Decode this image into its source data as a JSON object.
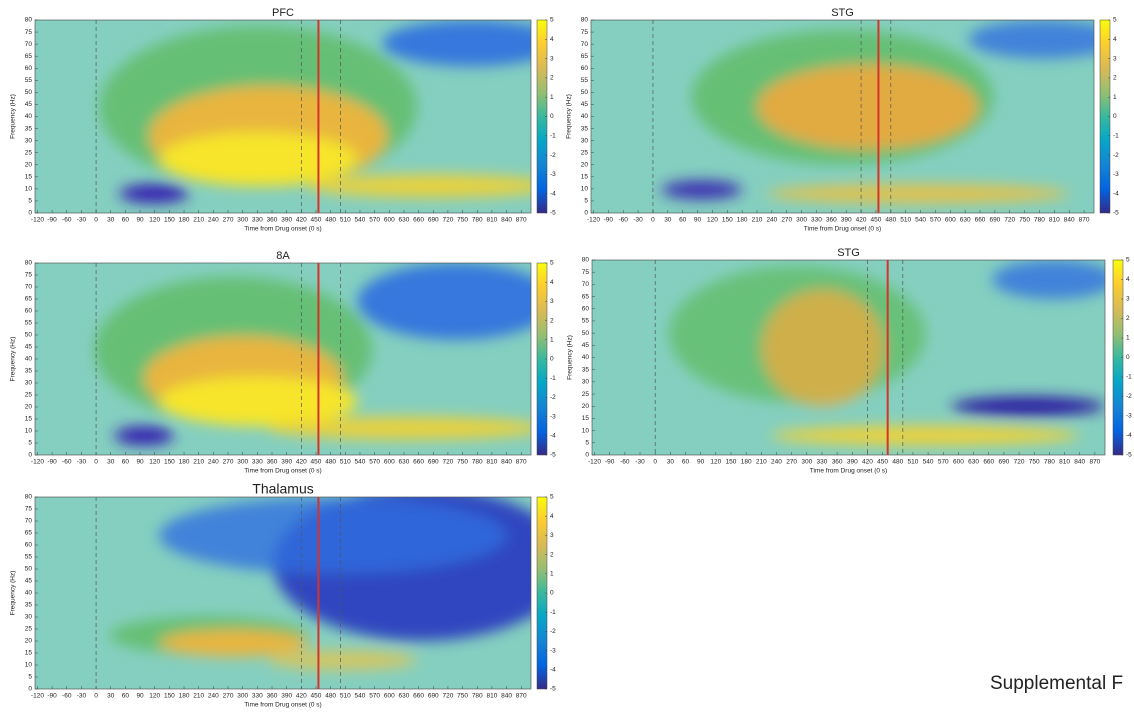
{
  "chart_data": [
    {
      "type": "heatmap",
      "title": "PFC",
      "xlabel": "Time from Drug onset (0 s)",
      "ylabel": "Frequency (Hz)",
      "xlim": [
        -125,
        890
      ],
      "ylim": [
        0,
        80
      ],
      "xticks": [
        -120,
        -90,
        -60,
        -30,
        0,
        30,
        60,
        90,
        120,
        150,
        180,
        210,
        240,
        270,
        300,
        330,
        360,
        390,
        420,
        450,
        480,
        510,
        540,
        570,
        600,
        630,
        660,
        690,
        720,
        750,
        780,
        810,
        840,
        870
      ],
      "yticks": [
        0,
        5,
        10,
        15,
        20,
        25,
        30,
        35,
        40,
        45,
        50,
        55,
        60,
        65,
        70,
        75,
        80
      ],
      "clim": [
        -5,
        5
      ],
      "cticks": [
        -5,
        -4,
        -3,
        -2,
        -1,
        0,
        1,
        2,
        3,
        4,
        5
      ],
      "dashed_lines": [
        0,
        420,
        500
      ],
      "red_line": 455
    },
    {
      "type": "heatmap",
      "title": "STG",
      "xlabel": "Time from Drug onset (0 s)",
      "ylabel": "Frequency (Hz)",
      "xlim": [
        -125,
        890
      ],
      "ylim": [
        0,
        80
      ],
      "xticks": [
        -120,
        -90,
        -60,
        -30,
        0,
        30,
        60,
        90,
        120,
        150,
        180,
        210,
        240,
        270,
        300,
        330,
        360,
        390,
        420,
        450,
        480,
        510,
        540,
        570,
        600,
        630,
        660,
        690,
        720,
        750,
        780,
        810,
        840,
        870
      ],
      "yticks": [
        0,
        5,
        10,
        15,
        20,
        25,
        30,
        35,
        40,
        45,
        50,
        55,
        60,
        65,
        70,
        75,
        80
      ],
      "clim": [
        -5,
        5
      ],
      "cticks": [
        -5,
        -4,
        -3,
        -2,
        -1,
        0,
        1,
        2,
        3,
        4,
        5
      ],
      "dashed_lines": [
        0,
        420,
        480
      ],
      "red_line": 455
    },
    {
      "type": "heatmap",
      "title": "8A",
      "xlabel": "Time from Drug onset (0 s)",
      "ylabel": "Frequency (Hz)",
      "xlim": [
        -125,
        890
      ],
      "ylim": [
        0,
        80
      ],
      "xticks": [
        -120,
        -90,
        -60,
        -30,
        0,
        30,
        60,
        90,
        120,
        150,
        180,
        210,
        240,
        270,
        300,
        330,
        360,
        390,
        420,
        450,
        480,
        510,
        540,
        570,
        600,
        630,
        660,
        690,
        720,
        750,
        780,
        810,
        840,
        870
      ],
      "yticks": [
        0,
        5,
        10,
        15,
        20,
        25,
        30,
        35,
        40,
        45,
        50,
        55,
        60,
        65,
        70,
        75,
        80
      ],
      "clim": [
        -5,
        5
      ],
      "cticks": [
        -5,
        -4,
        -3,
        -2,
        -1,
        0,
        1,
        2,
        3,
        4,
        5
      ],
      "dashed_lines": [
        0,
        420,
        500
      ],
      "red_line": 455
    },
    {
      "type": "heatmap",
      "title": "STG",
      "xlabel": "Time from Drug onset (0 s)",
      "ylabel": "Frequency (Hz)",
      "xlim": [
        -125,
        890
      ],
      "ylim": [
        0,
        80
      ],
      "xticks": [
        -120,
        -90,
        -60,
        -30,
        0,
        30,
        60,
        90,
        120,
        150,
        180,
        210,
        240,
        270,
        300,
        330,
        360,
        390,
        420,
        450,
        480,
        510,
        540,
        570,
        600,
        630,
        660,
        690,
        720,
        750,
        780,
        810,
        840,
        870
      ],
      "yticks": [
        0,
        5,
        10,
        15,
        20,
        25,
        30,
        35,
        40,
        45,
        50,
        55,
        60,
        65,
        70,
        75,
        80
      ],
      "clim": [
        -5,
        5
      ],
      "cticks": [
        -5,
        -4,
        -3,
        -2,
        -1,
        0,
        1,
        2,
        3,
        4,
        5
      ],
      "dashed_lines": [
        0,
        420,
        490
      ],
      "red_line": 460
    },
    {
      "type": "heatmap",
      "title": "Thalamus",
      "xlabel": "Time from Drug onset (0 s)",
      "ylabel": "Frequency (Hz)",
      "xlim": [
        -125,
        890
      ],
      "ylim": [
        0,
        80
      ],
      "xticks": [
        -120,
        -90,
        -60,
        -30,
        0,
        30,
        60,
        90,
        120,
        150,
        180,
        210,
        240,
        270,
        300,
        330,
        360,
        390,
        420,
        450,
        480,
        510,
        540,
        570,
        600,
        630,
        660,
        690,
        720,
        750,
        780,
        810,
        840,
        870
      ],
      "yticks": [
        0,
        5,
        10,
        15,
        20,
        25,
        30,
        35,
        40,
        45,
        50,
        55,
        60,
        65,
        70,
        75,
        80
      ],
      "clim": [
        -5,
        5
      ],
      "cticks": [
        -5,
        -4,
        -3,
        -2,
        -1,
        0,
        1,
        2,
        3,
        4,
        5
      ],
      "dashed_lines": [
        0,
        420,
        500
      ],
      "red_line": 455
    }
  ],
  "caption": "Supplemental F"
}
